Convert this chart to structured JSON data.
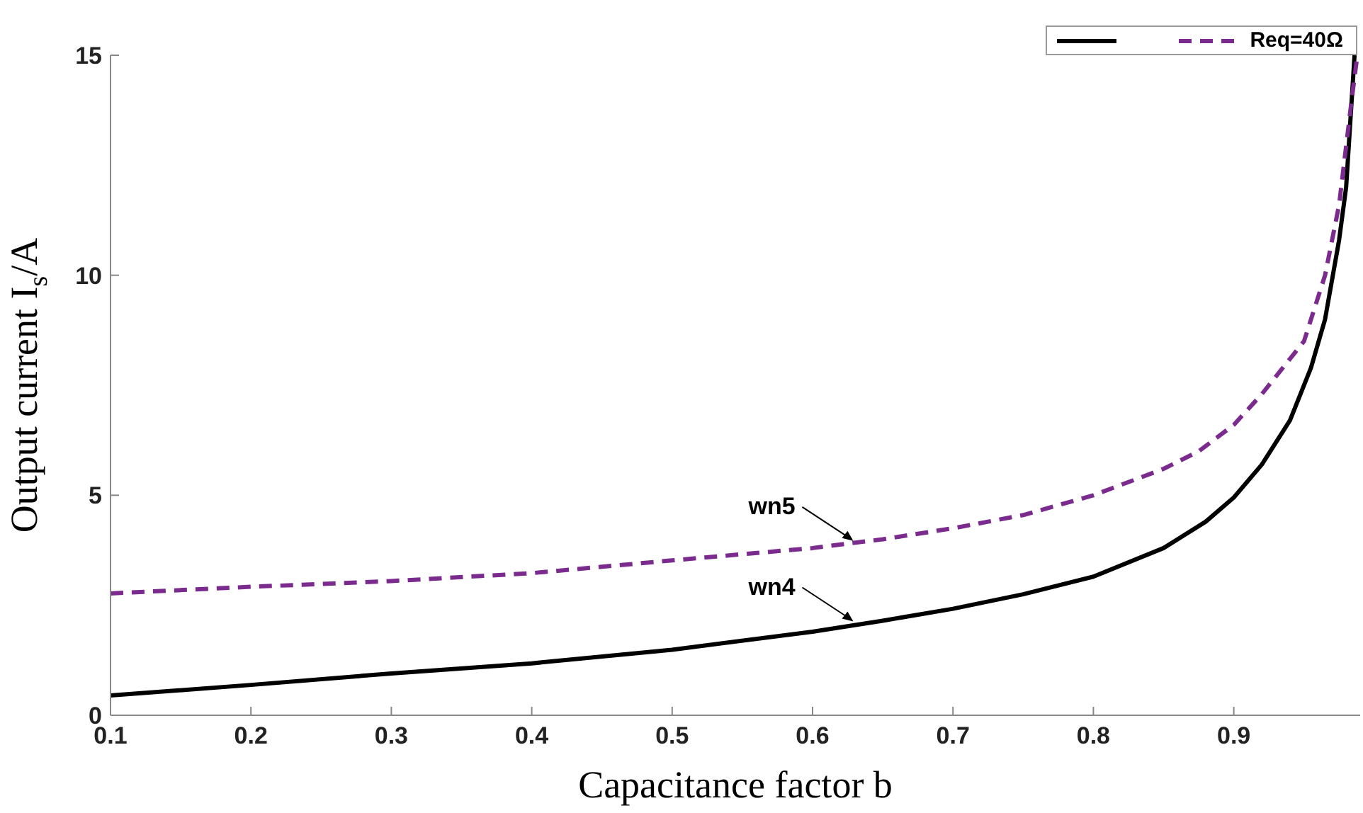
{
  "chart_data": {
    "type": "line",
    "xlabel": "Capacitance factor b",
    "ylabel": "Output current I$_{s}$/A",
    "xlim": [
      0.1,
      0.99
    ],
    "xticks": [
      0.1,
      0.2,
      0.3,
      0.4,
      0.5,
      0.6,
      0.7,
      0.8,
      0.9
    ],
    "ylim": [
      0,
      15
    ],
    "yticks": [
      0,
      5,
      10,
      15
    ],
    "grid": false,
    "legend": "top right",
    "marker": "none",
    "series": [
      {
        "color": "#000000",
        "line_style": "solid",
        "x": [
          0.1,
          0.2,
          0.3,
          0.4,
          0.5,
          0.6,
          0.65,
          0.7,
          0.75,
          0.8,
          0.85,
          0.88,
          0.9,
          0.92,
          0.94,
          0.955,
          0.965,
          0.975,
          0.98,
          0.986
        ],
        "values": [
          0.45,
          0.69,
          0.95,
          1.18,
          1.49,
          1.9,
          2.15,
          2.42,
          2.75,
          3.15,
          3.8,
          4.4,
          4.95,
          5.7,
          6.7,
          7.9,
          9.0,
          10.8,
          12,
          15
        ]
      },
      {
        "name": "Req=40Ω",
        "color": "#7b2a8e",
        "line_style": "dashed",
        "x": [
          0.1,
          0.2,
          0.3,
          0.4,
          0.5,
          0.6,
          0.65,
          0.7,
          0.75,
          0.8,
          0.85,
          0.875,
          0.9,
          0.92,
          0.935,
          0.95,
          0.965,
          0.975,
          0.984,
          0.988
        ],
        "values": [
          2.77,
          2.92,
          3.05,
          3.23,
          3.52,
          3.8,
          4.0,
          4.25,
          4.55,
          5.0,
          5.6,
          6.0,
          6.6,
          7.3,
          7.9,
          8.5,
          10,
          11.6,
          14,
          15
        ]
      }
    ],
    "annotations": [
      {
        "text": "wn5",
        "x": 0.63,
        "y": 3.93
      },
      {
        "text": "wn4",
        "x": 0.63,
        "y": 2.1
      }
    ]
  }
}
